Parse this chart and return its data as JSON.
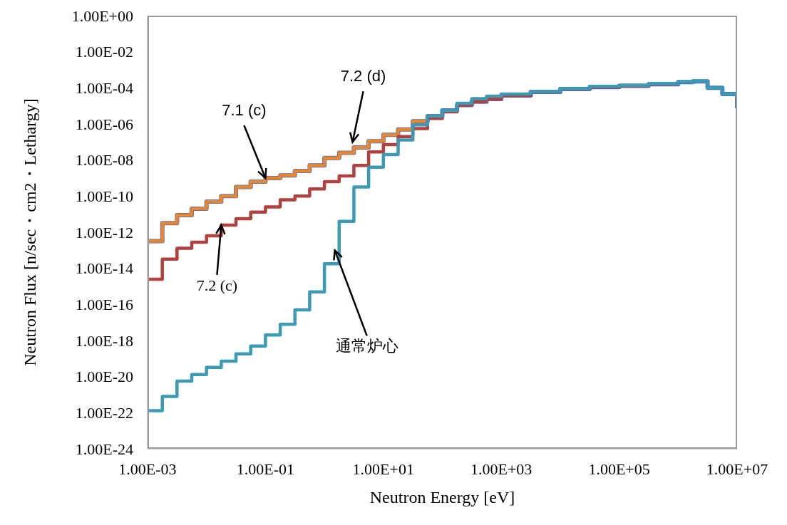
{
  "chart_data": {
    "type": "step",
    "xlabel": "Neutron Energy [eV]",
    "ylabel": "Neutron Flux [n/sec・cm2・Lethargy]",
    "log": "xy",
    "grid": false,
    "marker": "none",
    "xlim": [
      0.001,
      10000000
    ],
    "ylim": [
      1e-24,
      1
    ],
    "xticks": [
      {
        "value": 0.001,
        "label": "1.00E-03"
      },
      {
        "value": 0.1,
        "label": "1.00E-01"
      },
      {
        "value": 10,
        "label": "1.00E+01"
      },
      {
        "value": 1000,
        "label": "1.00E+03"
      },
      {
        "value": 100000,
        "label": "1.00E+05"
      },
      {
        "value": 10000000,
        "label": "1.00E+07"
      }
    ],
    "yticks": [
      {
        "value": 1e-24,
        "label": "1.00E-24"
      },
      {
        "value": 1e-22,
        "label": "1.00E-22"
      },
      {
        "value": 1e-20,
        "label": "1.00E-20"
      },
      {
        "value": 1e-18,
        "label": "1.00E-18"
      },
      {
        "value": 1e-16,
        "label": "1.00E-16"
      },
      {
        "value": 1e-14,
        "label": "1.00E-14"
      },
      {
        "value": 1e-12,
        "label": "1.00E-12"
      },
      {
        "value": 1e-10,
        "label": "1.00E-10"
      },
      {
        "value": 1e-08,
        "label": "1.00E-08"
      },
      {
        "value": 1e-06,
        "label": "1.00E-06"
      },
      {
        "value": 0.0001,
        "label": "1.00E-04"
      },
      {
        "value": 0.01,
        "label": "1.00E-02"
      },
      {
        "value": 1,
        "label": "1.00E+00"
      }
    ],
    "x": [
      0.001,
      0.00178,
      0.00316,
      0.00562,
      0.01,
      0.0178,
      0.0316,
      0.0562,
      0.1,
      0.178,
      0.316,
      0.562,
      1,
      1.78,
      3.16,
      5.62,
      10,
      17.8,
      31.6,
      56.2,
      100,
      178,
      316,
      562,
      1000,
      3162,
      10000,
      31623,
      100000,
      316228,
      1000000,
      1780000,
      3160000,
      5620000,
      10000000
    ],
    "series": [
      {
        "color": "#4472c4",
        "values": [
          3.2e-13,
          3.2e-12,
          8.9e-12,
          2e-11,
          5e-11,
          1e-10,
          3.2e-10,
          6.3e-10,
          1e-09,
          1.4e-09,
          2.5e-09,
          5e-09,
          1.3e-08,
          2.5e-08,
          5e-08,
          1.1e-07,
          2.5e-07,
          5e-07,
          1.4e-06,
          2.7e-06,
          5.6e-06,
          1.1e-05,
          1.7e-05,
          2.4e-05,
          3.8e-05,
          6e-05,
          8.5e-05,
          0.00011,
          0.00013,
          0.00016,
          0.00021,
          0.00023,
          0.0001,
          4.5e-05,
          7.4e-06
        ]
      },
      {
        "color": "#e8862f",
        "values": [
          3.2e-13,
          3.2e-12,
          8.9e-12,
          2e-11,
          5e-11,
          1e-10,
          3.2e-10,
          6.3e-10,
          1e-09,
          1.4e-09,
          2.5e-09,
          5e-09,
          1.3e-08,
          2.5e-08,
          5e-08,
          1.1e-07,
          2.5e-07,
          5e-07,
          1.4e-06,
          2.7e-06,
          5.6e-06,
          null,
          null,
          null,
          null,
          null,
          null,
          null,
          null,
          null,
          null,
          null,
          null,
          null,
          null
        ]
      },
      {
        "color": "#b0413e",
        "values": [
          2.5e-15,
          3.2e-14,
          1.3e-13,
          2.8e-13,
          6.3e-13,
          2.5e-12,
          5.6e-12,
          1.3e-11,
          2.5e-11,
          6.3e-11,
          1e-10,
          2.5e-10,
          6.3e-10,
          1.3e-09,
          5e-09,
          2.8e-08,
          7.1e-08,
          2e-07,
          5.6e-07,
          2e-06,
          4.7e-06,
          1.1e-05,
          1.7e-05,
          2.4e-05,
          3.8e-05,
          6e-05,
          8.5e-05,
          0.00011,
          0.00013,
          0.00016,
          0.00021,
          null,
          null,
          null,
          null
        ]
      },
      {
        "color": "#3d9ab5",
        "values": [
          1.3e-22,
          7.9e-22,
          5.6e-21,
          1.3e-20,
          3.2e-20,
          7.1e-20,
          1.8e-19,
          5e-19,
          2e-18,
          7.9e-18,
          5e-17,
          5e-16,
          1.8e-14,
          4e-12,
          3.2e-10,
          4e-09,
          2e-08,
          1.3e-07,
          8.9e-07,
          2.7e-06,
          5.6e-06,
          1.4e-05,
          2.5e-05,
          3.5e-05,
          4.5e-05,
          6.3e-05,
          8.9e-05,
          0.00012,
          0.00014,
          0.00017,
          0.00022,
          0.00024,
          0.0001,
          4.5e-05,
          7.4e-06
        ]
      }
    ],
    "annotations": [
      {
        "text": "7.1 (c)",
        "x": 0.1,
        "y": 1e-09
      },
      {
        "text": "7.2 (d)",
        "x": 3,
        "y": 1e-07
      },
      {
        "text": "7.2 (c)",
        "x": 0.0178,
        "y": 2.5e-12
      },
      {
        "text": "通常炉心",
        "x": 1.5,
        "y": 1e-13
      }
    ]
  }
}
